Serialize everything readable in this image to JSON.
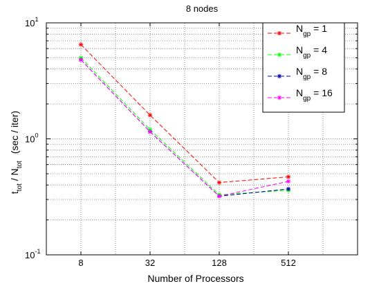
{
  "chart_data": {
    "type": "line",
    "title": "8 nodes",
    "xlabel": "Number of Processors",
    "ylabel_main": "t",
    "ylabel_main_sub": "tot",
    "ylabel_div": " / N",
    "ylabel_div_sub": "tot",
    "ylabel_units": "(sec / iter)",
    "x_scale": "log2",
    "y_scale": "log10",
    "xlim": [
      4,
      2048
    ],
    "ylim": [
      0.1,
      10
    ],
    "x_ticks": [
      8,
      32,
      128,
      512
    ],
    "x_tick_labels": [
      "8",
      "32",
      "128",
      "512"
    ],
    "y_ticks": [
      {
        "base": "10",
        "exp": "-1",
        "value": 0.1
      },
      {
        "base": "10",
        "exp": "0",
        "value": 1
      },
      {
        "base": "10",
        "exp": "1",
        "value": 10
      }
    ],
    "grid": true,
    "legend_position": "top-right",
    "x": [
      8,
      32,
      128,
      512
    ],
    "series": [
      {
        "name_main": "N",
        "name_sub": "gp",
        "name_tail": " = 1",
        "color": "#ff0000",
        "values": [
          6.5,
          1.6,
          0.42,
          0.47
        ]
      },
      {
        "name_main": "N",
        "name_sub": "gp",
        "name_tail": " = 4",
        "color": "#00ff00",
        "values": [
          5.0,
          1.2,
          0.33,
          0.36
        ]
      },
      {
        "name_main": "N",
        "name_sub": "gp",
        "name_tail": " = 8",
        "color": "#0000aa",
        "values": [
          4.8,
          1.15,
          0.32,
          0.37
        ]
      },
      {
        "name_main": "N",
        "name_sub": "gp",
        "name_tail": " = 16",
        "color": "#ff00ff",
        "values": [
          4.8,
          1.15,
          0.32,
          0.43
        ]
      }
    ]
  }
}
